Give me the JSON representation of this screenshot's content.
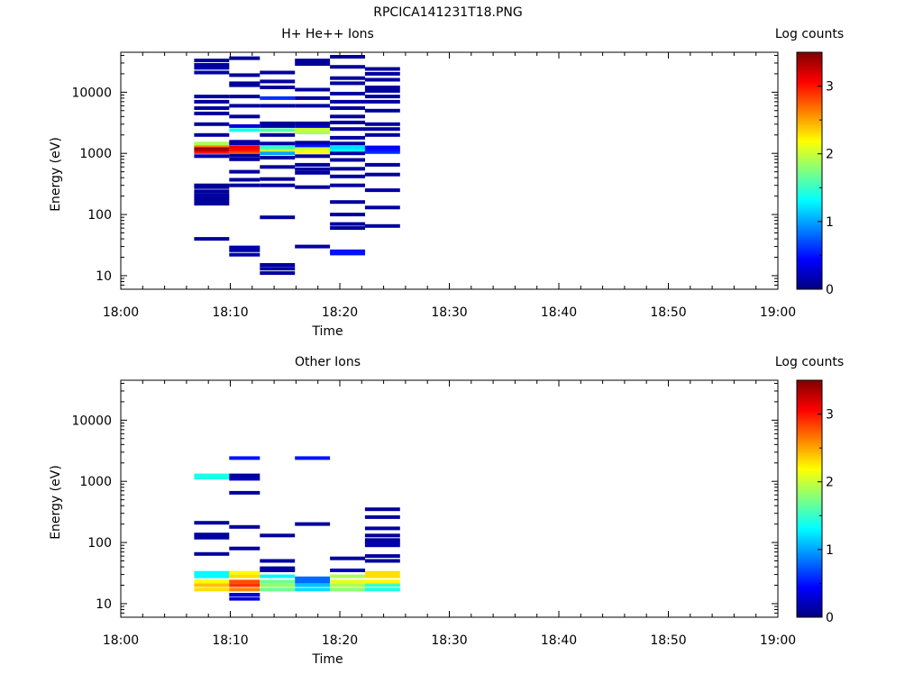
{
  "figure_title": "RPCICA141231T18.PNG",
  "colormap": [
    "#000080",
    "#0000ff",
    "#0080ff",
    "#00ffff",
    "#80ff80",
    "#ffff00",
    "#ff8000",
    "#ff0000",
    "#800000"
  ],
  "chart_data": [
    {
      "type": "heatmap",
      "title": "H+ He++ Ions",
      "xlabel": "Time",
      "ylabel": "Energy (eV)",
      "colorbar_label": "Log counts",
      "xlim": [
        "18:00",
        "19:00"
      ],
      "xticks": [
        "18:00",
        "18:10",
        "18:20",
        "18:30",
        "18:40",
        "18:50",
        "19:00"
      ],
      "ylim": [
        6,
        45000
      ],
      "yscale": "log",
      "yticks": [
        "10",
        "100",
        "1000",
        "10000"
      ],
      "clim": [
        0,
        3.5
      ],
      "cticks": [
        "0",
        "1",
        "2",
        "3"
      ],
      "columns": [
        {
          "t0": 6.7,
          "t1": 9.9,
          "cells": [
            [
              40,
              0.1
            ],
            [
              150,
              0.1
            ],
            [
              170,
              0.1
            ],
            [
              190,
              0.1
            ],
            [
              210,
              0.1
            ],
            [
              240,
              0.1
            ],
            [
              280,
              0.1
            ],
            [
              300,
              0.1
            ],
            [
              900,
              0.2
            ],
            [
              1050,
              3.0
            ],
            [
              1150,
              3.3
            ],
            [
              1250,
              3.4
            ],
            [
              1350,
              2.6
            ],
            [
              1450,
              1.9
            ],
            [
              2000,
              0.1
            ],
            [
              3000,
              0.1
            ],
            [
              4500,
              0.1
            ],
            [
              5500,
              0.1
            ],
            [
              7000,
              0.1
            ],
            [
              8500,
              0.1
            ],
            [
              21000,
              0.15
            ],
            [
              25000,
              0.15
            ],
            [
              28000,
              0.1
            ],
            [
              33000,
              0.1
            ]
          ]
        },
        {
          "t0": 9.9,
          "t1": 12.7,
          "cells": [
            [
              22,
              0.15
            ],
            [
              26,
              0.15
            ],
            [
              29,
              0.15
            ],
            [
              300,
              0.1
            ],
            [
              370,
              0.1
            ],
            [
              500,
              0.1
            ],
            [
              800,
              0.1
            ],
            [
              920,
              0.1
            ],
            [
              1050,
              2.8
            ],
            [
              1150,
              3.0
            ],
            [
              1250,
              3.1
            ],
            [
              1450,
              0.2
            ],
            [
              1550,
              0.1
            ],
            [
              2400,
              1.4
            ],
            [
              2800,
              0.3
            ],
            [
              4000,
              0.1
            ],
            [
              6000,
              0.1
            ],
            [
              8500,
              0.1
            ],
            [
              13000,
              0.1
            ],
            [
              14000,
              0.1
            ],
            [
              19000,
              0.1
            ],
            [
              36000,
              0.1
            ]
          ]
        },
        {
          "t0": 12.7,
          "t1": 15.9,
          "cells": [
            [
              11,
              0.1
            ],
            [
              13,
              0.1
            ],
            [
              15,
              0.1
            ],
            [
              90,
              0.1
            ],
            [
              300,
              0.1
            ],
            [
              380,
              0.1
            ],
            [
              600,
              0.1
            ],
            [
              850,
              0.1
            ],
            [
              1000,
              1.0
            ],
            [
              1150,
              2.0
            ],
            [
              1250,
              1.5
            ],
            [
              1450,
              0.1
            ],
            [
              2000,
              0.1
            ],
            [
              2400,
              1.6
            ],
            [
              2800,
              0.1
            ],
            [
              3100,
              0.1
            ],
            [
              6000,
              0.1
            ],
            [
              8000,
              0.6
            ],
            [
              12000,
              0.1
            ],
            [
              15000,
              0.1
            ],
            [
              21000,
              0.1
            ]
          ]
        },
        {
          "t0": 15.9,
          "t1": 19.1,
          "cells": [
            [
              30,
              0.1
            ],
            [
              280,
              0.1
            ],
            [
              480,
              0.1
            ],
            [
              550,
              0.1
            ],
            [
              650,
              0.1
            ],
            [
              900,
              0.1
            ],
            [
              1050,
              2.2
            ],
            [
              1200,
              2.0
            ],
            [
              1350,
              0.5
            ],
            [
              1500,
              0.1
            ],
            [
              2200,
              1.9
            ],
            [
              2500,
              2.0
            ],
            [
              2800,
              0.3
            ],
            [
              3100,
              0.1
            ],
            [
              6000,
              0.1
            ],
            [
              8000,
              0.1
            ],
            [
              11000,
              0.1
            ],
            [
              29000,
              0.1
            ],
            [
              33000,
              0.1
            ]
          ]
        },
        {
          "t0": 19.1,
          "t1": 22.3,
          "cells": [
            [
              23,
              0.5
            ],
            [
              25,
              0.5
            ],
            [
              60,
              0.1
            ],
            [
              70,
              0.1
            ],
            [
              100,
              0.1
            ],
            [
              160,
              0.1
            ],
            [
              300,
              0.1
            ],
            [
              420,
              0.1
            ],
            [
              560,
              0.1
            ],
            [
              780,
              0.1
            ],
            [
              1000,
              0.1
            ],
            [
              1150,
              1.3
            ],
            [
              1250,
              1.2
            ],
            [
              1450,
              0.1
            ],
            [
              1800,
              0.1
            ],
            [
              2500,
              0.1
            ],
            [
              3200,
              0.1
            ],
            [
              4000,
              0.1
            ],
            [
              5500,
              0.1
            ],
            [
              7000,
              0.1
            ],
            [
              9500,
              0.1
            ],
            [
              14000,
              0.1
            ],
            [
              17000,
              0.1
            ],
            [
              26000,
              0.1
            ],
            [
              38000,
              0.1
            ]
          ]
        },
        {
          "t0": 22.3,
          "t1": 25.5,
          "cells": [
            [
              65,
              0.1
            ],
            [
              130,
              0.1
            ],
            [
              250,
              0.1
            ],
            [
              450,
              0.1
            ],
            [
              650,
              0.1
            ],
            [
              1050,
              0.6
            ],
            [
              1150,
              0.5
            ],
            [
              1250,
              0.4
            ],
            [
              2000,
              0.1
            ],
            [
              2500,
              0.1
            ],
            [
              3000,
              0.1
            ],
            [
              5000,
              0.1
            ],
            [
              7000,
              0.1
            ],
            [
              8500,
              0.1
            ],
            [
              10500,
              0.1
            ],
            [
              12000,
              0.1
            ],
            [
              16000,
              0.1
            ],
            [
              20000,
              0.1
            ],
            [
              24000,
              0.1
            ]
          ]
        }
      ]
    },
    {
      "type": "heatmap",
      "title": "Other Ions",
      "xlabel": "Time",
      "ylabel": "Energy (eV)",
      "colorbar_label": "Log counts",
      "xlim": [
        "18:00",
        "19:00"
      ],
      "xticks": [
        "18:00",
        "18:10",
        "18:20",
        "18:30",
        "18:40",
        "18:50",
        "19:00"
      ],
      "ylim": [
        6,
        45000
      ],
      "yscale": "log",
      "yticks": [
        "10",
        "100",
        "1000",
        "10000"
      ],
      "clim": [
        0,
        3.5
      ],
      "cticks": [
        "0",
        "1",
        "2",
        "3"
      ],
      "columns": [
        {
          "t0": 6.7,
          "t1": 9.9,
          "cells": [
            [
              17,
              2.3
            ],
            [
              20,
              2.4
            ],
            [
              23,
              2.2
            ],
            [
              28,
              1.3
            ],
            [
              32,
              1.3
            ],
            [
              65,
              0.1
            ],
            [
              120,
              0.1
            ],
            [
              135,
              0.1
            ],
            [
              210,
              0.1
            ],
            [
              1150,
              1.4
            ],
            [
              1250,
              1.4
            ]
          ]
        },
        {
          "t0": 9.9,
          "t1": 12.7,
          "cells": [
            [
              12,
              0.3
            ],
            [
              14,
              0.3
            ],
            [
              17,
              2.6
            ],
            [
              20,
              2.9
            ],
            [
              23,
              2.8
            ],
            [
              28,
              2.3
            ],
            [
              32,
              2.2
            ],
            [
              80,
              0.1
            ],
            [
              180,
              0.1
            ],
            [
              650,
              0.1
            ],
            [
              1100,
              0.2
            ],
            [
              1250,
              0.1
            ],
            [
              2400,
              0.5
            ]
          ]
        },
        {
          "t0": 12.7,
          "t1": 15.9,
          "cells": [
            [
              17,
              1.7
            ],
            [
              20,
              1.8
            ],
            [
              23,
              1.7
            ],
            [
              28,
              1.3
            ],
            [
              35,
              0.1
            ],
            [
              38,
              0.1
            ],
            [
              50,
              0.1
            ],
            [
              130,
              0.1
            ]
          ]
        },
        {
          "t0": 15.9,
          "t1": 19.1,
          "cells": [
            [
              17,
              1.2
            ],
            [
              20,
              1.1
            ],
            [
              23,
              0.8
            ],
            [
              26,
              0.8
            ],
            [
              200,
              0.1
            ],
            [
              2400,
              0.5
            ]
          ]
        },
        {
          "t0": 19.1,
          "t1": 22.3,
          "cells": [
            [
              17,
              1.8
            ],
            [
              20,
              1.9
            ],
            [
              23,
              2.1
            ],
            [
              28,
              1.9
            ],
            [
              35,
              0.2
            ],
            [
              55,
              0.1
            ]
          ]
        },
        {
          "t0": 22.3,
          "t1": 25.5,
          "cells": [
            [
              17,
              1.4
            ],
            [
              20,
              1.5
            ],
            [
              23,
              2.2
            ],
            [
              28,
              2.3
            ],
            [
              32,
              2.3
            ],
            [
              50,
              0.1
            ],
            [
              60,
              0.1
            ],
            [
              90,
              0.15
            ],
            [
              100,
              0.15
            ],
            [
              110,
              0.1
            ],
            [
              130,
              0.1
            ],
            [
              170,
              0.1
            ],
            [
              260,
              0.1
            ],
            [
              350,
              0.1
            ]
          ]
        }
      ]
    }
  ]
}
